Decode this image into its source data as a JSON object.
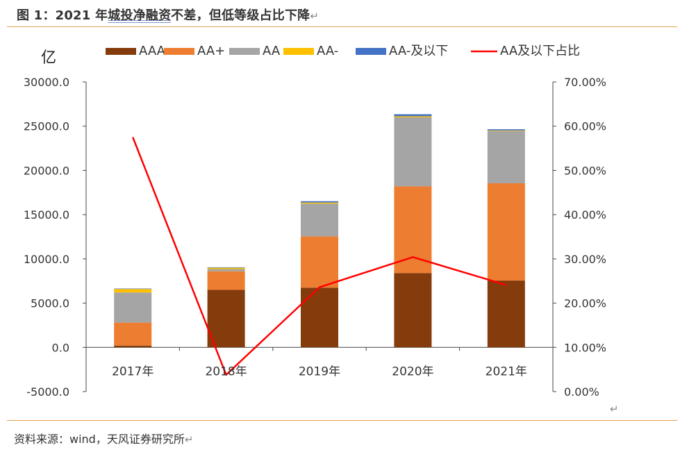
{
  "figure_title": "图 1：2021 年城投净融资不差，但低等级占比下降",
  "title_parts": {
    "prefix": "图 1：2021 年",
    "underlined": "城投净融资",
    "suffix": "不差，但低等级占比下降"
  },
  "source": "资料来源：wind，天风证券研究所",
  "return_mark": "↵",
  "chart_data": {
    "type": "bar",
    "stacked": true,
    "unit_label": "亿",
    "categories": [
      "2017年",
      "2018年",
      "2019年",
      "2020年",
      "2021年"
    ],
    "series": [
      {
        "name": "AAA",
        "color": "#843c0c",
        "values": [
          200,
          6500,
          6750,
          8400,
          7550
        ]
      },
      {
        "name": "AA+",
        "color": "#ed7d31",
        "values": [
          2600,
          2100,
          5800,
          9800,
          11000
        ]
      },
      {
        "name": "AA",
        "color": "#a5a5a5",
        "values": [
          3400,
          250,
          3700,
          7800,
          5900
        ]
      },
      {
        "name": "AA-",
        "color": "#ffc000",
        "values": [
          400,
          150,
          120,
          120,
          60
        ]
      },
      {
        "name": "AA-及以下",
        "color": "#4472c4",
        "values": [
          50,
          50,
          150,
          230,
          140
        ]
      }
    ],
    "line_series": {
      "name": "AA及以下占比",
      "color": "#ff0000",
      "values": [
        57.5,
        3.8,
        23.6,
        30.4,
        24.1
      ],
      "axis": "right"
    },
    "y_left": {
      "min": -5000,
      "max": 30000,
      "step": 5000,
      "ticks": [
        "-5000.0",
        "0.0",
        "5000.0",
        "10000.0",
        "15000.0",
        "20000.0",
        "25000.0",
        "30000.0"
      ]
    },
    "y_right": {
      "min": 0,
      "max": 70,
      "step": 10,
      "ticks": [
        "0.00%",
        "10.00%",
        "20.00%",
        "30.00%",
        "40.00%",
        "50.00%",
        "60.00%",
        "70.00%"
      ]
    },
    "legend_position": "top"
  }
}
